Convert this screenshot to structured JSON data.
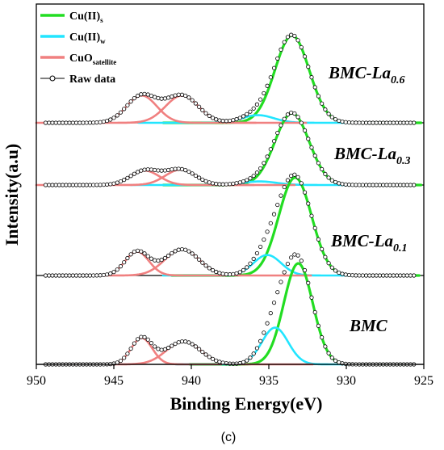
{
  "chart_data": {
    "type": "line",
    "xlabel": "Binding Energy(eV)",
    "ylabel": "Intensity(a.u)",
    "xlim": [
      950,
      925
    ],
    "x_ticks": [
      "950",
      "945",
      "940",
      "935",
      "930",
      "925"
    ],
    "caption": "(c)",
    "grid": false,
    "legend": {
      "position": "top-left",
      "items": [
        {
          "base": "Cu(II)",
          "sub": "s",
          "color": "#22dd22",
          "style": "line"
        },
        {
          "base": "Cu(II)",
          "sub": "w",
          "color": "#22e5ff",
          "style": "line"
        },
        {
          "base": "CuO",
          "sub": "satellite",
          "color": "#f08080",
          "style": "line"
        },
        {
          "base": "Raw data",
          "sub": "",
          "color": "#000000",
          "style": "line-circle"
        }
      ]
    },
    "colors": {
      "cu_s": "#22dd22",
      "cu_w": "#22e5ff",
      "satellite": "#f08080",
      "raw": "#000000"
    },
    "panels": [
      {
        "label_base": "BMC-La",
        "label_sub": "0.6",
        "peaks": [
          {
            "type": "cu_s",
            "center": 933.5,
            "height": 0.8,
            "fwhm": 2.6
          },
          {
            "type": "cu_w",
            "center": 935.7,
            "height": 0.07,
            "fwhm": 2.4
          },
          {
            "type": "satellite",
            "center": 943.2,
            "height": 0.25,
            "fwhm": 2.3
          },
          {
            "type": "satellite",
            "center": 940.6,
            "height": 0.25,
            "fwhm": 2.5
          }
        ]
      },
      {
        "label_base": "BMC-La",
        "label_sub": "0.3",
        "peaks": [
          {
            "type": "cu_s",
            "center": 933.5,
            "height": 0.7,
            "fwhm": 2.6
          },
          {
            "type": "cu_w",
            "center": 935.6,
            "height": 0.035,
            "fwhm": 2.6
          },
          {
            "type": "satellite",
            "center": 943.0,
            "height": 0.14,
            "fwhm": 2.2
          },
          {
            "type": "satellite",
            "center": 940.7,
            "height": 0.15,
            "fwhm": 2.3
          }
        ]
      },
      {
        "label_base": "BMC-La",
        "label_sub": "0.1",
        "peaks": [
          {
            "type": "cu_s",
            "center": 933.3,
            "height": 0.86,
            "fwhm": 2.5
          },
          {
            "type": "cu_w",
            "center": 935.1,
            "height": 0.18,
            "fwhm": 2.1
          },
          {
            "type": "satellite",
            "center": 943.5,
            "height": 0.21,
            "fwhm": 1.8
          },
          {
            "type": "satellite",
            "center": 940.6,
            "height": 0.23,
            "fwhm": 2.6
          }
        ]
      },
      {
        "label_base": "BMC",
        "label_sub": "",
        "peaks": [
          {
            "type": "cu_s",
            "center": 933.1,
            "height": 0.88,
            "fwhm": 2.2
          },
          {
            "type": "cu_w",
            "center": 934.6,
            "height": 0.32,
            "fwhm": 2.0
          },
          {
            "type": "satellite",
            "center": 943.2,
            "height": 0.23,
            "fwhm": 1.6
          },
          {
            "type": "satellite",
            "center": 940.5,
            "height": 0.2,
            "fwhm": 2.6
          }
        ]
      }
    ]
  }
}
